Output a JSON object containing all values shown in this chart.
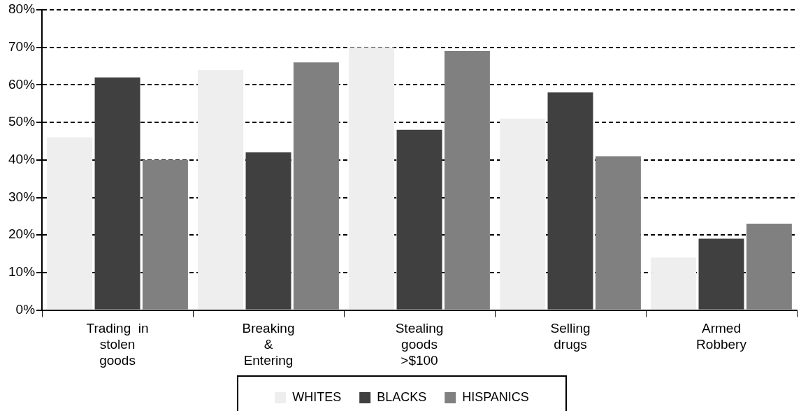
{
  "chart_data": {
    "type": "bar",
    "categories": [
      "Trading  in\nstolen\ngoods",
      "Breaking\n&\nEntering",
      "Stealing\ngoods\n>$100",
      "Selling\ndrugs",
      "Armed\nRobbery"
    ],
    "series": [
      {
        "name": "WHITES",
        "color": "#eeeeee",
        "values": [
          46,
          64,
          70,
          51,
          14
        ]
      },
      {
        "name": "BLACKS",
        "color": "#404040",
        "values": [
          62,
          42,
          48,
          58,
          19
        ]
      },
      {
        "name": "HISPANICS",
        "color": "#808080",
        "values": [
          40,
          66,
          69,
          41,
          23
        ]
      }
    ],
    "ylim": [
      0,
      80
    ],
    "yticks": [
      {
        "value": 0,
        "label": "0%"
      },
      {
        "value": 10,
        "label": "10%"
      },
      {
        "value": 20,
        "label": "20%"
      },
      {
        "value": 30,
        "label": "30%"
      },
      {
        "value": 40,
        "label": "40%"
      },
      {
        "value": 50,
        "label": "50%"
      },
      {
        "value": 60,
        "label": "60%"
      },
      {
        "value": 70,
        "label": "70%"
      },
      {
        "value": 80,
        "label": "80%"
      }
    ],
    "grid": "y",
    "legend": "bottom",
    "line_style": "dashed"
  }
}
